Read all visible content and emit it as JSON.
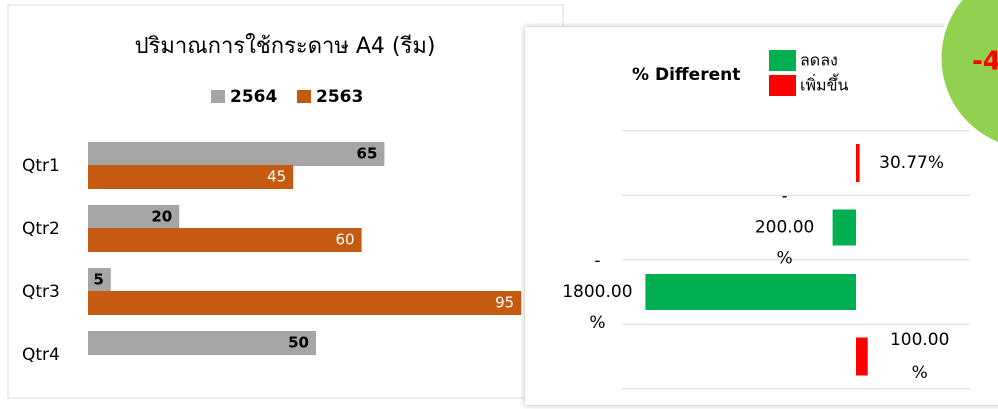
{
  "chart_data": [
    {
      "type": "bar",
      "orientation": "horizontal",
      "title": "ปริมาณการใช้กระดาษ A4 (รีม)",
      "categories": [
        "Qtr1",
        "Qtr2",
        "Qtr3",
        "Qtr4"
      ],
      "series": [
        {
          "name": "2564",
          "color": "#a5a5a5",
          "values": [
            65,
            20,
            5,
            50
          ]
        },
        {
          "name": "2563",
          "color": "#c55a11",
          "values": [
            45,
            60,
            95,
            null
          ]
        }
      ],
      "xlim": [
        0,
        100
      ],
      "legend_position": "top"
    },
    {
      "type": "bar",
      "orientation": "horizontal",
      "title": "% Different",
      "legend": [
        {
          "name": "ลดลง",
          "color": "#00b050"
        },
        {
          "name": "เพิ่มขึ้น",
          "color": "#ff0000"
        }
      ],
      "values": [
        30.77,
        -200,
        -1800,
        100
      ],
      "value_labels": [
        "30.77%",
        "-200.00%",
        "-1800.00%",
        "100.00%"
      ],
      "xlim": [
        -2000,
        1000
      ],
      "grid": true,
      "legend_position": "top-right"
    }
  ],
  "badge": {
    "text": "-4",
    "color": "#92d050",
    "text_color": "#ff0000"
  }
}
